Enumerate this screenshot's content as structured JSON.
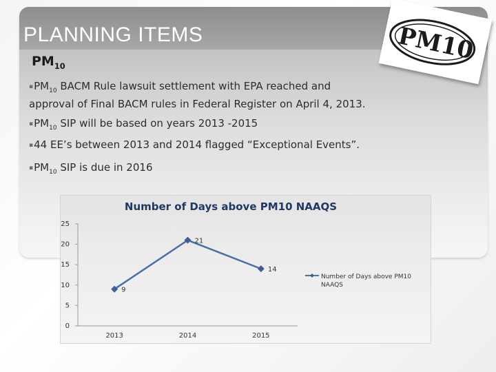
{
  "slide": {
    "title": "PLANNING ITEMS",
    "subtitle_main": "PM",
    "subtitle_sub": "10",
    "logo_text": "PM10",
    "bullets": [
      {
        "pre": "PM",
        "sub": "10",
        "text": " BACM Rule lawsuit settlement  with  EPA reached and",
        "line2": "approval of Final BACM rules in Federal Register on April 4, 2013."
      },
      {
        "pre": "PM",
        "sub": "10",
        "text": " SIP will be based on years 2013 -2015"
      },
      {
        "pre": "",
        "sub": "",
        "text": "44 EE’s between 2013 and 2014 flagged “Exceptional Events”."
      },
      {
        "pre": "PM",
        "sub": "10",
        "text": " SIP is due in 2016"
      }
    ]
  },
  "colors": {
    "line": "#4a6fa5",
    "marker": "#3f5f95"
  },
  "chart_data": {
    "type": "line",
    "title": "Number of Days above PM10 NAAQS",
    "categories": [
      "2013",
      "2014",
      "2015"
    ],
    "series": [
      {
        "name": "Number of Days above PM10 NAAQS",
        "values": [
          9,
          21,
          14
        ]
      }
    ],
    "ylim": [
      0,
      25
    ],
    "yticks": [
      0,
      5,
      10,
      15,
      20,
      25
    ],
    "grid": false,
    "legend": "right"
  }
}
